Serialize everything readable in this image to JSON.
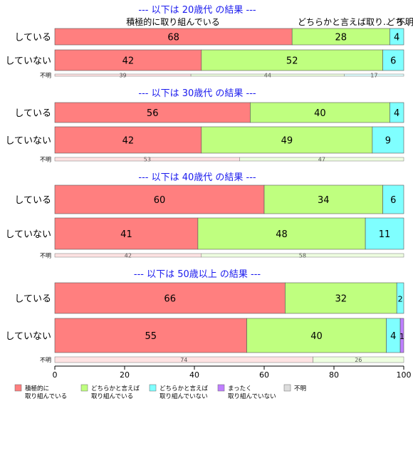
{
  "chart_data": {
    "type": "bar",
    "orientation": "horizontal",
    "stacked": true,
    "xlim": [
      0,
      100
    ],
    "x_ticks": [
      "0",
      "20",
      "40",
      "60",
      "80",
      "100"
    ],
    "series": [
      {
        "name": "積極的に\n取り組んでいる",
        "color": "#ff7f7f"
      },
      {
        "name": "どちらかと言えば\n取り組んでいる",
        "color": "#bfff7f"
      },
      {
        "name": "どちらかと言えば\n取り組んでいない",
        "color": "#7fffff"
      },
      {
        "name": "まったく\n取り組んでいない",
        "color": "#bf7fff"
      },
      {
        "name": "不明",
        "color": "#dddddd"
      }
    ],
    "top_labels": [
      "積極的に取り組んでいる",
      "どちらかと言えば取り..",
      "どち..",
      "不明"
    ],
    "panels": [
      {
        "title": "--- 以下は 20歳代 の結果 ---",
        "bars": [
          {
            "label": "している",
            "values": [
              68,
              28,
              4,
              0
            ]
          },
          {
            "label": "していない",
            "values": [
              42,
              52,
              6,
              0
            ]
          }
        ],
        "missing": {
          "label": "不明",
          "values": [
            39,
            44,
            17,
            0
          ]
        }
      },
      {
        "title": "--- 以下は 30歳代 の結果 ---",
        "bars": [
          {
            "label": "している",
            "values": [
              56,
              40,
              4,
              0
            ]
          },
          {
            "label": "していない",
            "values": [
              42,
              49,
              9,
              0
            ]
          }
        ],
        "missing": {
          "label": "不明",
          "values": [
            53,
            47,
            0,
            0
          ]
        }
      },
      {
        "title": "--- 以下は 40歳代 の結果 ---",
        "bars": [
          {
            "label": "している",
            "values": [
              60,
              34,
              6,
              0
            ]
          },
          {
            "label": "していない",
            "values": [
              41,
              48,
              11,
              0
            ]
          }
        ],
        "missing": {
          "label": "不明",
          "values": [
            42,
            58,
            0,
            0
          ]
        }
      },
      {
        "title": "--- 以下は 50歳以上 の結果 ---",
        "bars": [
          {
            "label": "している",
            "values": [
              66,
              32,
              2,
              0
            ]
          },
          {
            "label": "していない",
            "values": [
              55,
              40,
              4,
              1
            ]
          }
        ],
        "missing": {
          "label": "不明",
          "values": [
            74,
            26,
            0,
            0
          ]
        }
      }
    ],
    "legend_position": "bottom",
    "grid": false
  }
}
